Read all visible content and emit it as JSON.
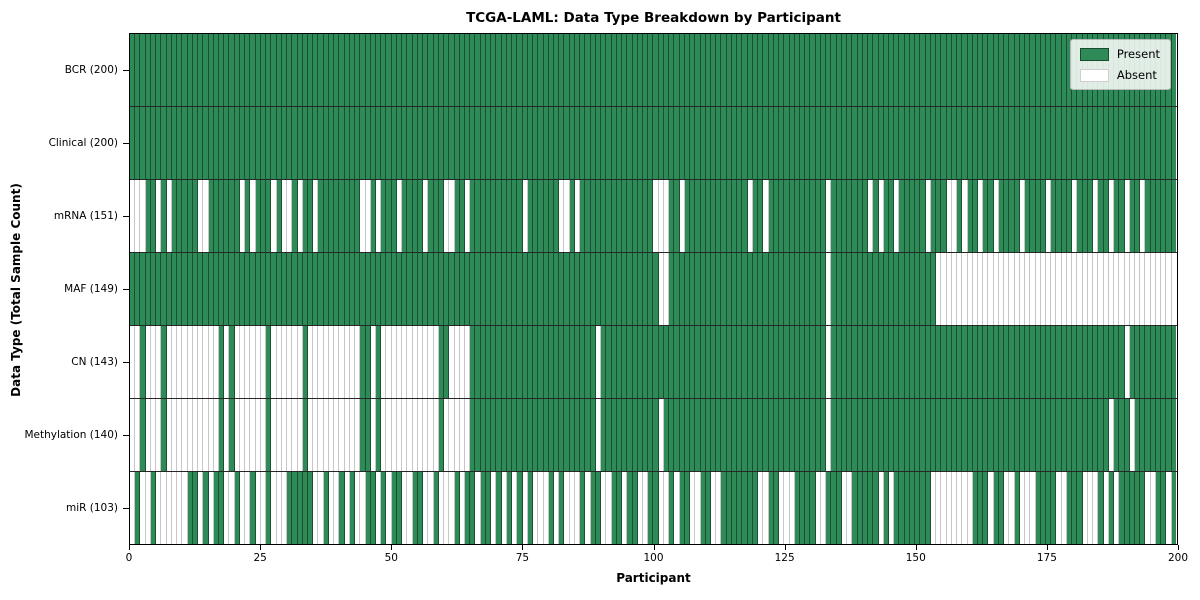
{
  "chart_data": {
    "type": "heatmap",
    "title": "TCGA-LAML: Data Type Breakdown by Participant",
    "xlabel": "Participant",
    "ylabel": "Data Type (Total Sample Count)",
    "x_range": [
      0,
      200
    ],
    "x_ticks": [
      0,
      25,
      50,
      75,
      100,
      125,
      150,
      175,
      200
    ],
    "n_participants": 200,
    "grid": "horizontal row dividers and per-participant cell edges",
    "legend_position": "upper right",
    "legend": [
      {
        "label": "Present",
        "color": "#2e8b57"
      },
      {
        "label": "Absent",
        "color": "#ffffff"
      }
    ],
    "pattern_encoding": "each pattern string has 200 chars for participants 0-199 left to right; 1 = Present, 0 = Absent",
    "rows": [
      {
        "label": "BCR (200)",
        "data_type": "BCR",
        "present_count": 200,
        "pattern": "11111111111111111111111111111111111111111111111111111111111111111111111111111111111111111111111111111111111111111111111111111111111111111111111111111111111111111111111111111111111111111111111111111111"
      },
      {
        "label": "Clinical (200)",
        "data_type": "Clinical",
        "present_count": 200,
        "pattern": "11111111111111111111111111111111111111111111111111111111111111111111111111111111111111111111111111111111111111111111111111111111111111111111111111111111111111111111111111111111111111111111111111111111"
      },
      {
        "label": "mRNA (151)",
        "data_type": "mRNA",
        "present_count": 151,
        "pattern": "00011010111110011111101011101001011011111111001011101111011100110111111111101111110010111111111111110001101111111111110110111111111110111111101011011111011100101101101111011110111101110110110110111111"
      },
      {
        "label": "MAF (149)",
        "data_type": "MAF",
        "present_count": 149,
        "pattern": "11111111111111111111111111111111111111111111111111111111111111111111111111111111111111111111111111111001111111111111111111111111111110111111111111111111110000000000000000000000000000000000000000000000"
      },
      {
        "label": "CN (143)",
        "data_type": "CN",
        "present_count": 143,
        "pattern": "00100010000000000101000000100000010000000000110100000000000110000111111111111111111111111011111111111111111111111111111111111111111110111111111111111111111111111111111111111111111111111111110111111111"
      },
      {
        "label": "Methylation (140)",
        "data_type": "Methylation",
        "present_count": 140,
        "pattern": "00100010000000000101000000100000010000000000110100000000000100000111111111111111111111111011111111111011111111111111111111111111111110111111111111111111111111111111111111111111111111111110111011111111"
      },
      {
        "label": "miR (103)",
        "data_type": "miR",
        "present_count": 103,
        "pattern": "01001000000110101100100100100011111001001010011010110011001000101101101010101000101000101100110110011001011001100111111100110001111001110011111010111111100000000111011001000111100111000101011111001101"
      }
    ]
  },
  "colors": {
    "present": "#2e8b57",
    "absent": "#ffffff",
    "present_cell_edge": "rgba(0,0,0,0.42)",
    "absent_cell_edge": "rgba(0,0,0,0.22)",
    "row_divider": "rgba(0,0,0,0.85)",
    "axis_spine": "#000000"
  }
}
